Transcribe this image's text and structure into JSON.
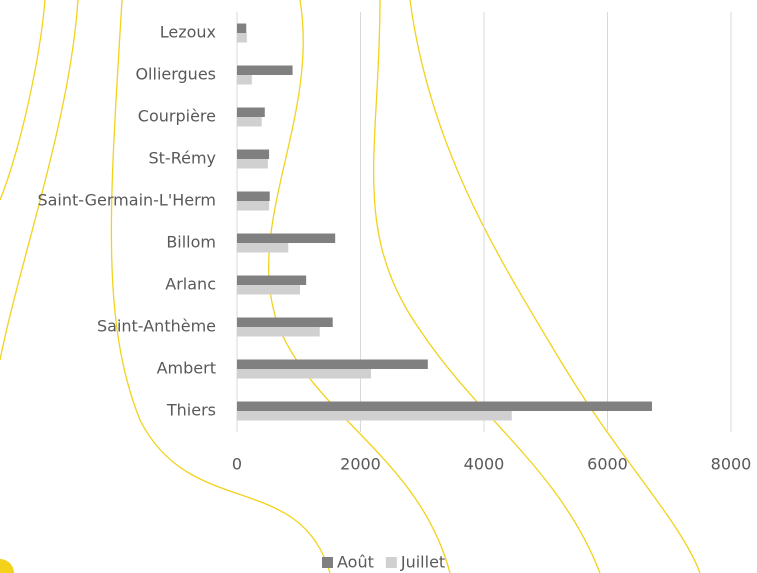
{
  "chart_data": {
    "type": "hbar",
    "categories": [
      "Lezoux",
      "Olliergues",
      "Courpière",
      "St-Rémy",
      "Saint-Germain-L'Herm",
      "Billom",
      "Arlanc",
      "Saint-Anthème",
      "Ambert",
      "Thiers"
    ],
    "series": [
      {
        "name": "Août",
        "color": "#808080",
        "values": [
          150,
          900,
          450,
          520,
          530,
          1590,
          1120,
          1550,
          3090,
          6720
        ]
      },
      {
        "name": "Juillet",
        "color": "#d0d0d0",
        "values": [
          160,
          240,
          400,
          500,
          520,
          830,
          1020,
          1340,
          2170,
          4450
        ]
      }
    ],
    "xlim": [
      0,
      8000
    ],
    "xticks": [
      0,
      2000,
      4000,
      6000,
      8000
    ],
    "grid": true,
    "legend": "bottom"
  }
}
